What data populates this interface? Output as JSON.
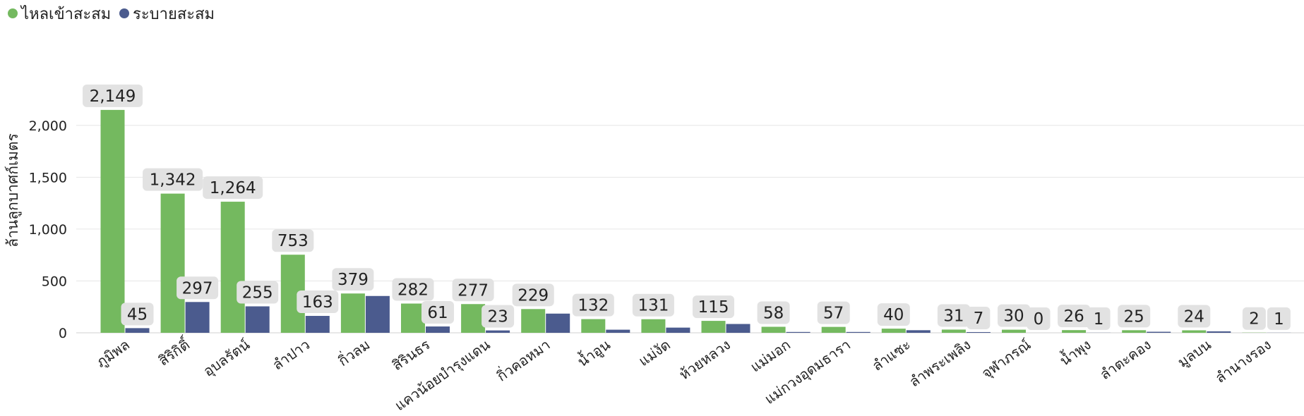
{
  "chart_data": {
    "type": "bar",
    "title": "",
    "xlabel": "",
    "ylabel": "ล้านลูกบาศก์เมตร",
    "ylim": [
      0,
      2200
    ],
    "yticks": [
      0,
      500,
      1000,
      1500,
      2000
    ],
    "ytick_labels": [
      "0",
      "500",
      "1,000",
      "1,500",
      "2,000"
    ],
    "grid": true,
    "legend_position": "top-left",
    "categories": [
      "ภูมิพล",
      "สิริกิติ์",
      "อุบลรัตน์",
      "ลำปาว",
      "กิ่วลม",
      "สิรินธร",
      "แควน้อยบำรุงแดน",
      "กิ่วคอหมา",
      "น้ำอูน",
      "แม่งัด",
      "ห้วยหลวง",
      "แม่มอก",
      "แม่กวงอุดมธารา",
      "ลำแซะ",
      "ลำพระเพลิง",
      "จุฬาภรณ์",
      "น้ำพุง",
      "ลำตะคอง",
      "มูลบน",
      "ลำนางรอง"
    ],
    "series": [
      {
        "name": "ไหลเข้าสะสม",
        "color": "#74b95f",
        "values": [
          2149,
          1342,
          1264,
          753,
          379,
          282,
          277,
          229,
          132,
          131,
          115,
          58,
          57,
          40,
          31,
          30,
          26,
          25,
          24,
          2
        ],
        "labels": [
          "2,149",
          "1,342",
          "1,264",
          "753",
          "379",
          "282",
          "277",
          "229",
          "132",
          "131",
          "115",
          "58",
          "57",
          "40",
          "31",
          "30",
          "26",
          "25",
          "24",
          "2"
        ]
      },
      {
        "name": "ระบายสะสม",
        "color": "#4b5b8e",
        "values": [
          45,
          297,
          255,
          163,
          355,
          61,
          23,
          185,
          30,
          50,
          85,
          8,
          8,
          25,
          7,
          0,
          1,
          10,
          14,
          1
        ],
        "labels": [
          "45",
          "297",
          "255",
          "163",
          "",
          "61",
          "23",
          "",
          "",
          "",
          "",
          "",
          "",
          "",
          "7",
          "0",
          "1",
          "",
          "",
          "1"
        ]
      }
    ]
  }
}
